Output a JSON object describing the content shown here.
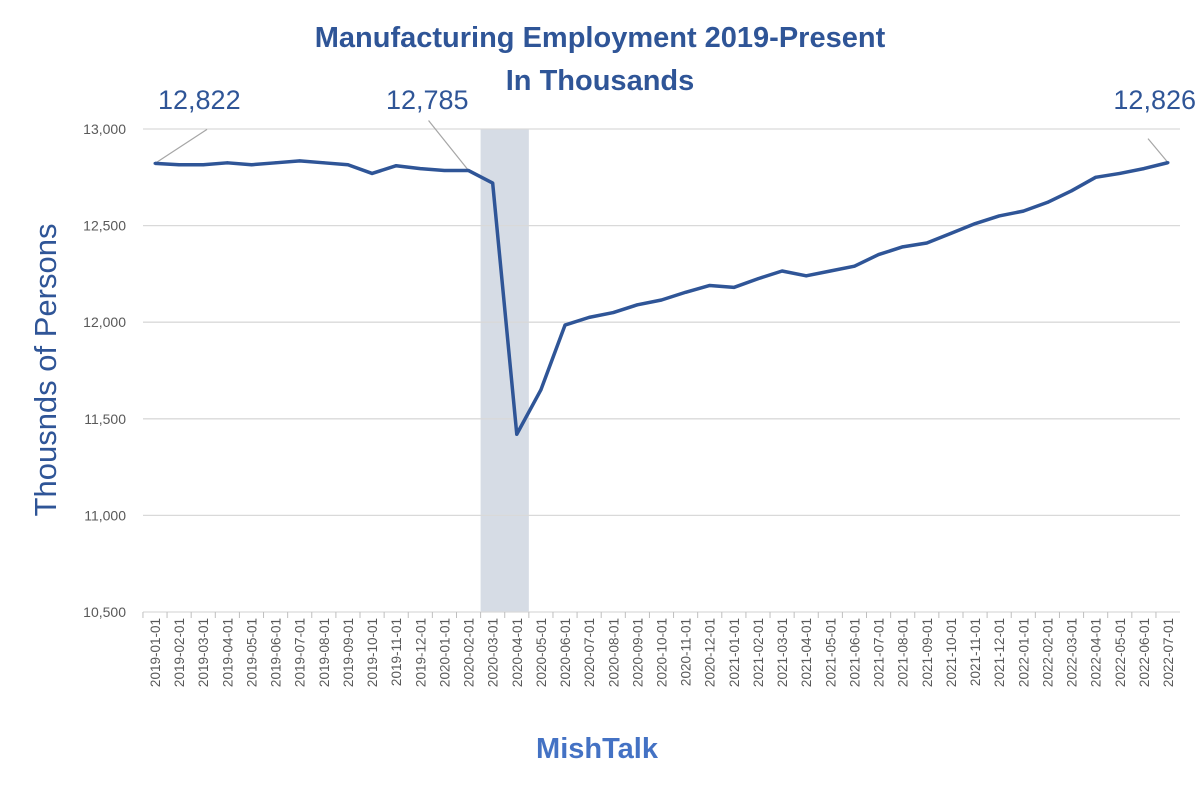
{
  "chart_data": {
    "type": "line",
    "title": "Manufacturing Employment 2019-Present",
    "subtitle": "In Thousands",
    "xlabel": "MishTalk",
    "ylabel": "Thousnds of Persons",
    "ylim": [
      10500,
      13000
    ],
    "yticks": [
      10500,
      11000,
      11500,
      12000,
      12500,
      13000
    ],
    "ytick_labels": [
      "10,500",
      "11,000",
      "11,500",
      "12,000",
      "12,500",
      "13,000"
    ],
    "grid": "horizontal",
    "line_color": "#2F5597",
    "shade_color": "#D6DCE5",
    "shaded_range": [
      "2020-03-01",
      "2020-04-01"
    ],
    "x": [
      "2019-01-01",
      "2019-02-01",
      "2019-03-01",
      "2019-04-01",
      "2019-05-01",
      "2019-06-01",
      "2019-07-01",
      "2019-08-01",
      "2019-09-01",
      "2019-10-01",
      "2019-11-01",
      "2019-12-01",
      "2020-01-01",
      "2020-02-01",
      "2020-03-01",
      "2020-04-01",
      "2020-05-01",
      "2020-06-01",
      "2020-07-01",
      "2020-08-01",
      "2020-09-01",
      "2020-10-01",
      "2020-11-01",
      "2020-12-01",
      "2021-01-01",
      "2021-02-01",
      "2021-03-01",
      "2021-04-01",
      "2021-05-01",
      "2021-06-01",
      "2021-07-01",
      "2021-08-01",
      "2021-09-01",
      "2021-10-01",
      "2021-11-01",
      "2021-12-01",
      "2022-01-01",
      "2022-02-01",
      "2022-03-01",
      "2022-04-01",
      "2022-05-01",
      "2022-06-01",
      "2022-07-01"
    ],
    "values": [
      12822,
      12815,
      12815,
      12825,
      12815,
      12825,
      12835,
      12825,
      12815,
      12770,
      12810,
      12795,
      12785,
      12785,
      12720,
      11420,
      11650,
      11985,
      12025,
      12050,
      12090,
      12115,
      12155,
      12190,
      12180,
      12225,
      12265,
      12240,
      12265,
      12290,
      12350,
      12390,
      12410,
      12460,
      12510,
      12550,
      12575,
      12620,
      12680,
      12750,
      12770,
      12795,
      12826
    ],
    "annotations": [
      {
        "x": "2019-01-01",
        "label": "12,822"
      },
      {
        "x": "2020-02-01",
        "label": "12,785"
      },
      {
        "x": "2022-07-01",
        "label": "12,826"
      }
    ]
  }
}
